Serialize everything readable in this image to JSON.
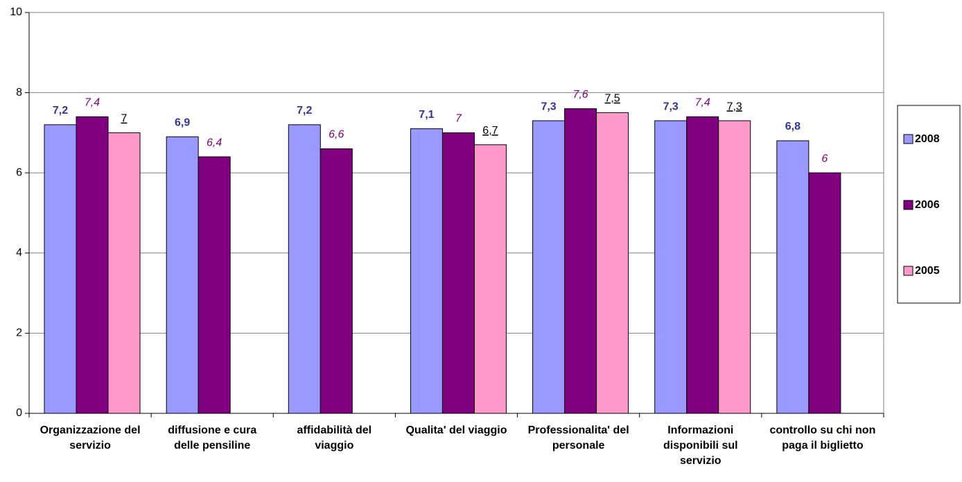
{
  "chart_data": {
    "type": "bar",
    "categories": [
      "Organizzazione del servizio",
      "diffusione e cura delle pensiline",
      "affidabilità del viaggio",
      "Qualita' del viaggio",
      "Professionalita' del personale",
      "Informazioni disponibili sul servizio",
      "controllo su chi non paga il biglietto"
    ],
    "series": [
      {
        "name": "2008",
        "color": "#9999ff",
        "values": [
          7.2,
          6.9,
          7.2,
          7.1,
          7.3,
          7.3,
          6.8
        ],
        "value_labels": [
          "7,2",
          "6,9",
          "7,2",
          "7,1",
          "7,3",
          "7,3",
          "6,8"
        ]
      },
      {
        "name": "2006",
        "color": "#800080",
        "values": [
          7.4,
          6.4,
          6.6,
          7,
          7.6,
          7.4,
          6
        ],
        "value_labels": [
          "7,4",
          "6,4",
          "6,6",
          "7",
          "7,6",
          "7,4",
          "6"
        ]
      },
      {
        "name": "2005",
        "color": "#ff99cc",
        "values": [
          7,
          null,
          null,
          6.7,
          7.5,
          7.3,
          null
        ],
        "value_labels": [
          "7",
          null,
          null,
          "6,7",
          "7,5",
          "7,3",
          null
        ]
      }
    ],
    "ylim": [
      0,
      10
    ],
    "yticks": [
      0,
      2,
      4,
      6,
      8,
      10
    ],
    "grid": true,
    "legend": "right"
  }
}
